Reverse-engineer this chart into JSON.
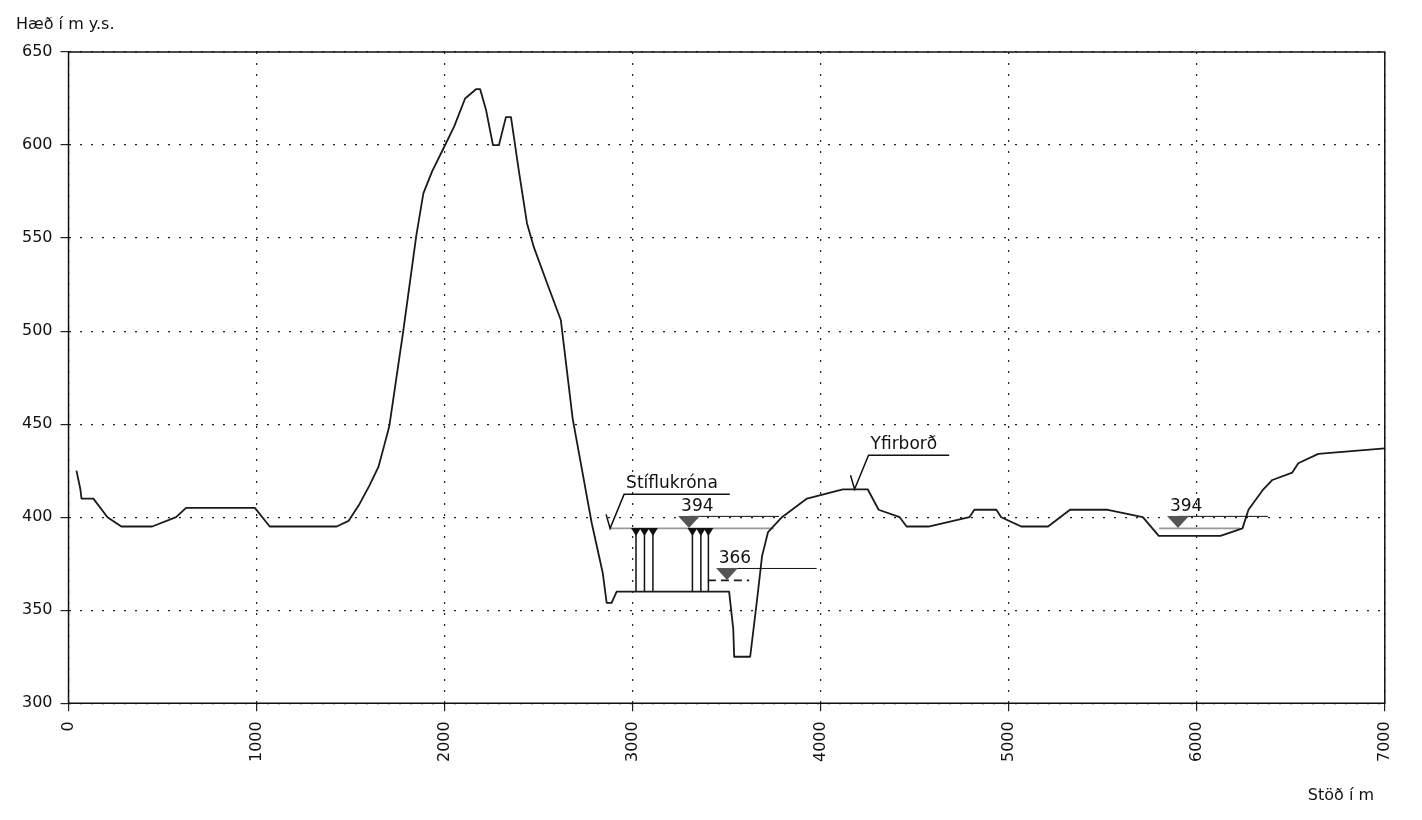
{
  "chart_data": {
    "type": "line",
    "xlabel": "Stöð í m",
    "ylabel": "Hæð í m y.s.",
    "xlim": [
      0,
      7000
    ],
    "xticks": [
      0,
      1000,
      2000,
      3000,
      4000,
      5000,
      6000,
      7000
    ],
    "ylim": [
      300,
      650
    ],
    "yticks": [
      300,
      350,
      400,
      450,
      500,
      550,
      600,
      650
    ],
    "grid": true,
    "legend": false,
    "marker": "none",
    "series": [
      {
        "color": "#1a1a1a",
        "x": [
          42,
          63,
          69,
          132,
          207,
          281,
          445,
          572,
          625,
          991,
          1070,
          1426,
          1489,
          1547,
          1600,
          1648,
          1680,
          1706,
          1780,
          1849,
          1887,
          1934,
          1993,
          2051,
          2109,
          2167,
          2189,
          2220,
          2257,
          2289,
          2326,
          2353,
          2395,
          2438,
          2475,
          2544,
          2618,
          2681,
          2782,
          2841,
          2862,
          2888,
          2915,
          3513,
          3535,
          3540,
          3625,
          3662,
          3688,
          3720,
          3794,
          3927,
          4118,
          4250,
          4308,
          4420,
          4457,
          4573,
          4791,
          4817,
          4934,
          4960,
          5066,
          5209,
          5326,
          5527,
          5713,
          5798,
          6126,
          6243,
          6275,
          6354,
          6402,
          6508,
          6540,
          6646,
          7000
        ],
        "values": [
          425,
          415,
          410,
          410,
          400,
          395,
          395,
          400,
          405,
          405,
          395,
          395,
          398,
          407,
          417,
          427,
          439,
          449,
          500,
          551,
          574,
          586,
          598,
          610,
          625,
          630,
          630,
          619,
          600,
          600,
          615,
          615,
          586,
          558,
          545,
          526,
          506,
          453,
          397,
          370,
          354,
          354,
          360,
          360,
          340,
          325,
          325,
          356,
          379,
          392,
          400,
          410,
          415,
          415,
          404,
          400,
          395,
          395,
          400,
          404,
          404,
          400,
          395,
          395,
          404,
          404,
          400,
          390,
          390,
          394,
          404,
          415,
          420,
          424,
          429,
          434,
          437
        ]
      },
      {
        "color": "#999999",
        "x": [
          2880,
          3750
        ],
        "values": [
          394,
          394
        ]
      },
      {
        "color": "#1a1a1a",
        "line_style": "dashed",
        "x": [
          3400,
          3620
        ],
        "values": [
          366,
          366
        ]
      },
      {
        "color": "#999999",
        "x": [
          5800,
          6230
        ],
        "values": [
          394,
          394
        ]
      }
    ],
    "annotations": [
      {
        "text": "Stíflukróna",
        "x": 2880,
        "y": 394
      },
      {
        "text": "394",
        "x": 3300,
        "y": 394
      },
      {
        "text": "366",
        "x": 3500,
        "y": 366
      },
      {
        "text": "Yfirborð",
        "x": 4180,
        "y": 415
      },
      {
        "text": "394",
        "x": 5900,
        "y": 394
      }
    ]
  }
}
